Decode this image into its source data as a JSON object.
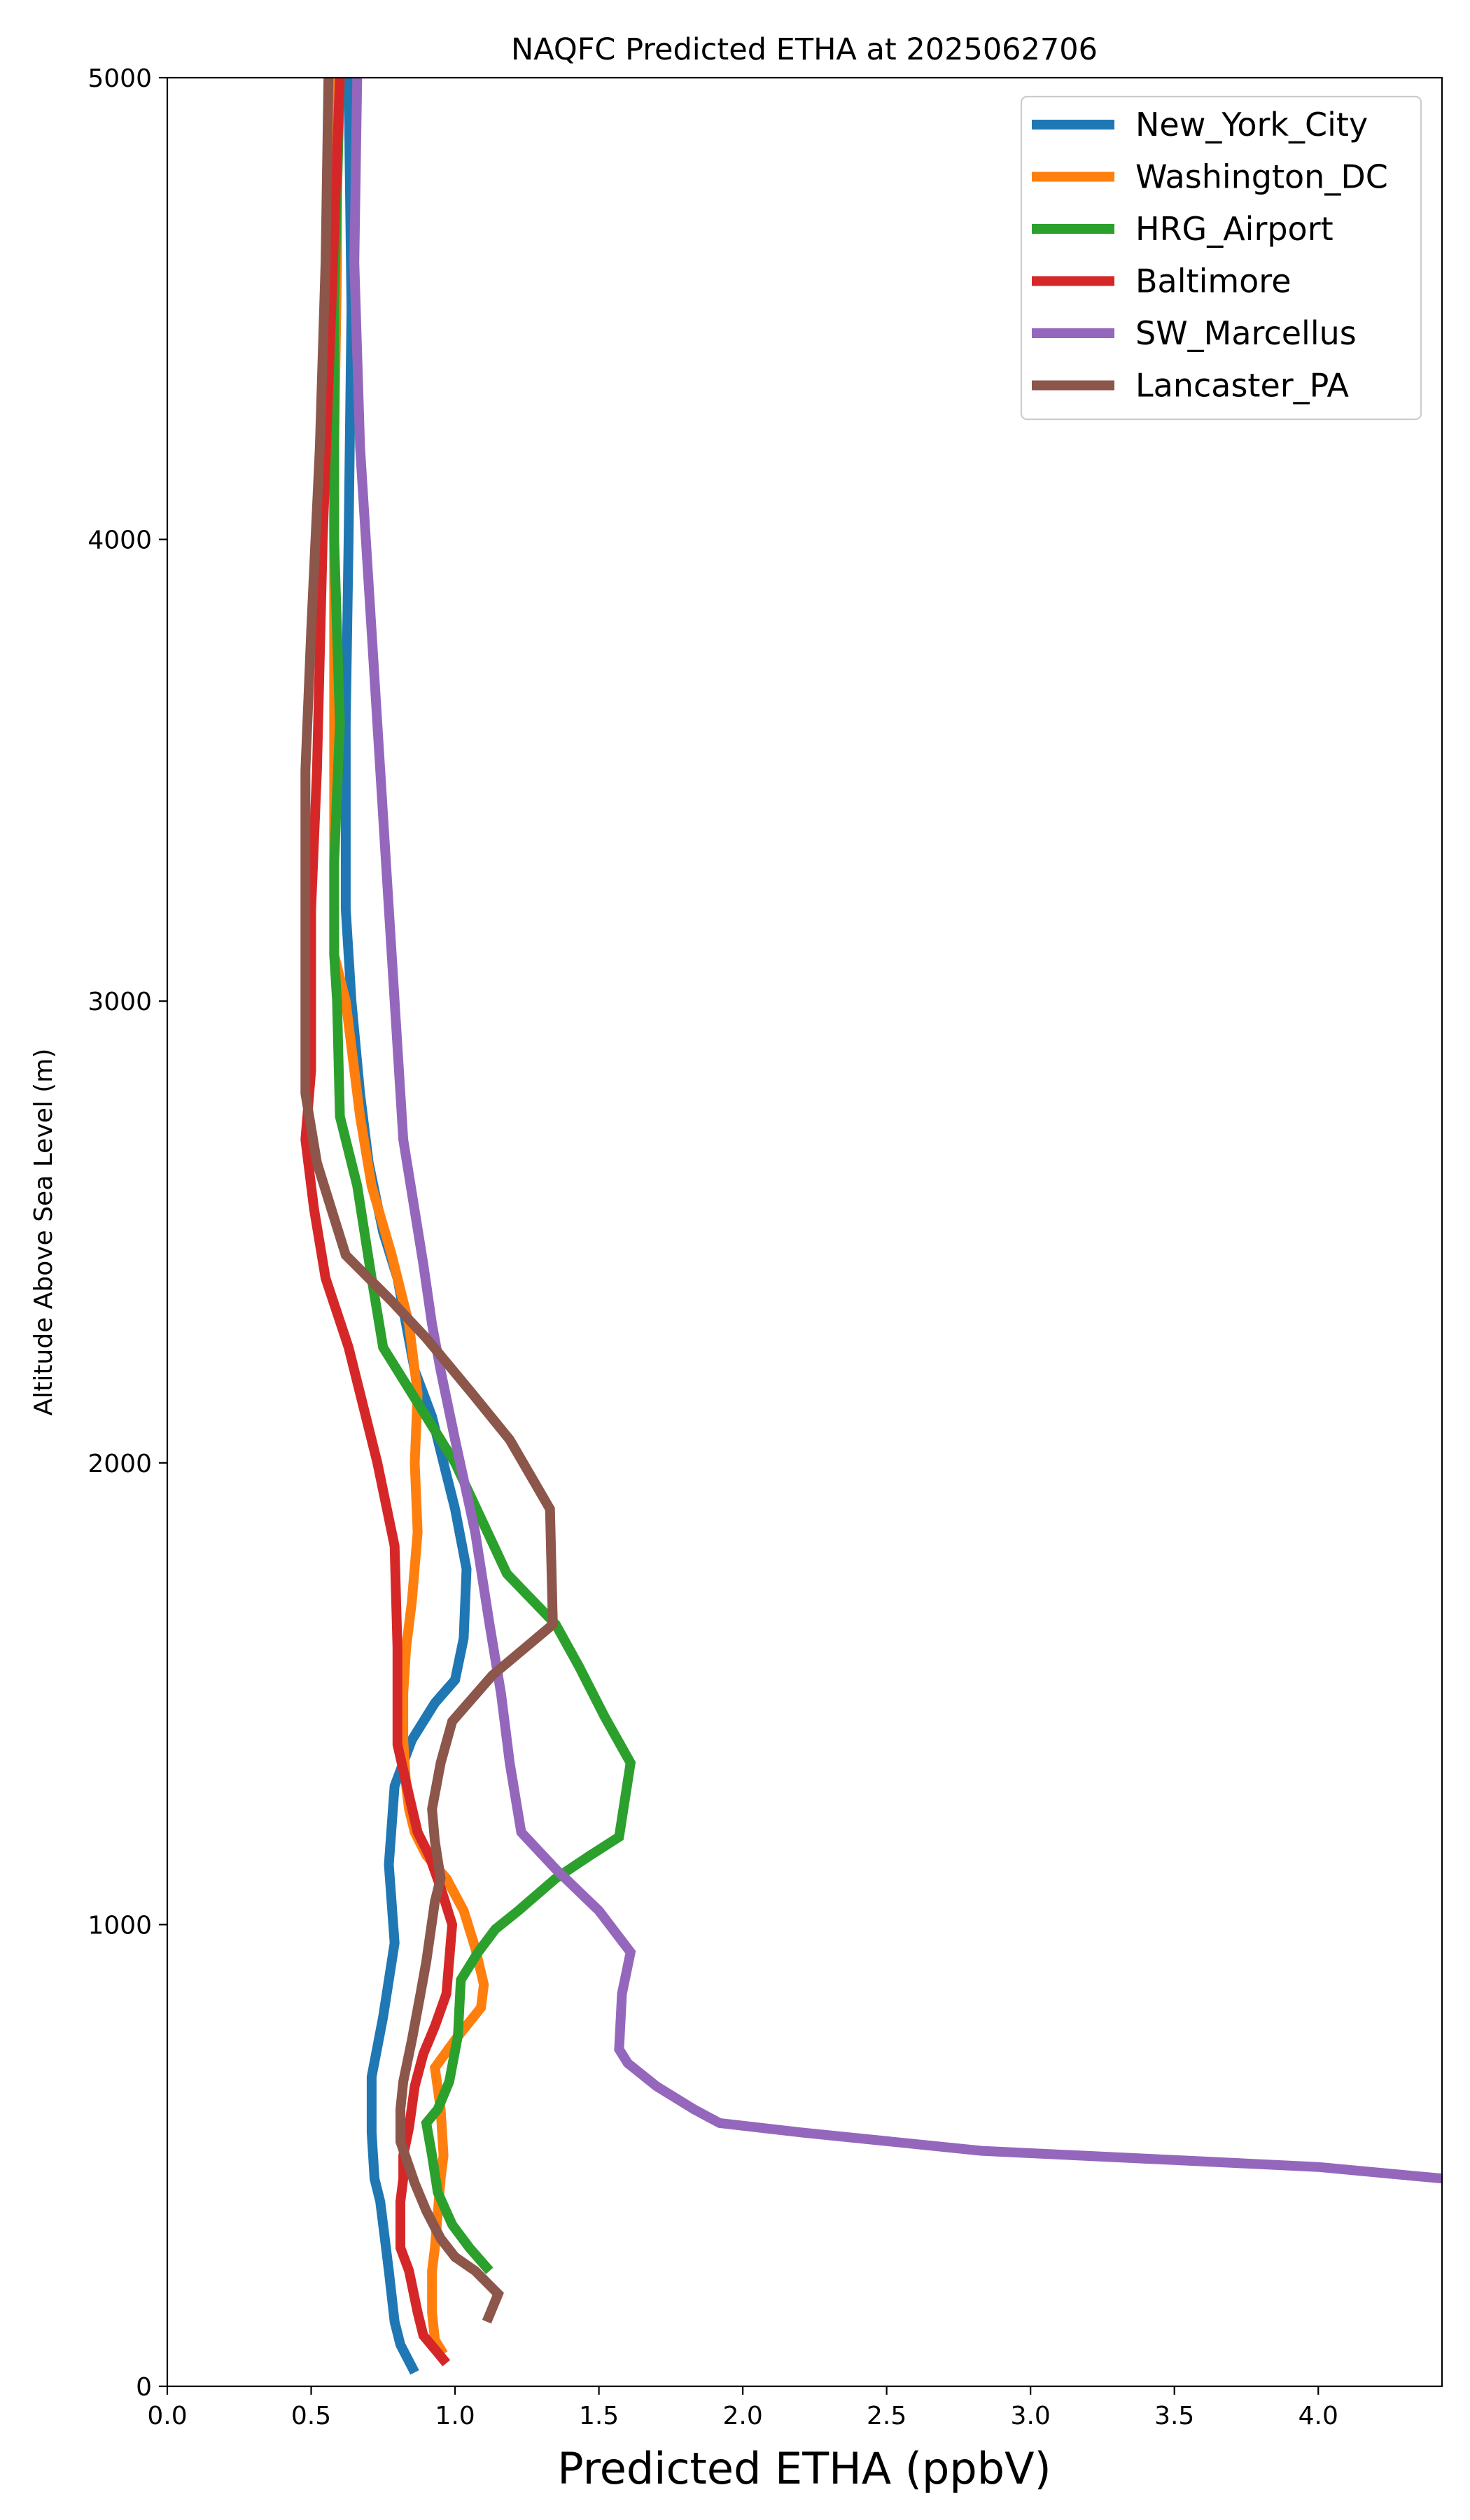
{
  "chart_data": {
    "type": "line",
    "title": "NAQFC Predicted ETHA at 2025062706",
    "xlabel": "Predicted ETHA (ppbV)",
    "ylabel": "Altitude Above Sea Level (m)",
    "xlim": [
      0,
      4.43
    ],
    "ylim": [
      0,
      5000
    ],
    "xticks": [
      "0.0",
      "0.5",
      "1.0",
      "1.5",
      "2.0",
      "2.5",
      "3.0",
      "3.5",
      "4.0"
    ],
    "xtick_values": [
      0,
      0.5,
      1.0,
      1.5,
      2.0,
      2.5,
      3.0,
      3.5,
      4.0
    ],
    "yticks": [
      "0",
      "1000",
      "2000",
      "3000",
      "4000",
      "5000"
    ],
    "ytick_values": [
      0,
      1000,
      2000,
      3000,
      4000,
      5000
    ],
    "grid": false,
    "legend_position": "top-right",
    "series": [
      {
        "name": "New_York_City",
        "color": "#1f77b4",
        "points": [
          [
            0.86,
            30
          ],
          [
            0.81,
            90
          ],
          [
            0.79,
            140
          ],
          [
            0.77,
            250
          ],
          [
            0.74,
            400
          ],
          [
            0.72,
            450
          ],
          [
            0.71,
            550
          ],
          [
            0.71,
            670
          ],
          [
            0.75,
            800
          ],
          [
            0.79,
            960
          ],
          [
            0.77,
            1130
          ],
          [
            0.79,
            1300
          ],
          [
            0.85,
            1400
          ],
          [
            0.93,
            1480
          ],
          [
            1.0,
            1530
          ],
          [
            1.03,
            1620
          ],
          [
            1.04,
            1770
          ],
          [
            1.0,
            1900
          ],
          [
            0.96,
            2000
          ],
          [
            0.92,
            2100
          ],
          [
            0.86,
            2200
          ],
          [
            0.8,
            2400
          ],
          [
            0.75,
            2500
          ],
          [
            0.7,
            2650
          ],
          [
            0.67,
            2800
          ],
          [
            0.64,
            3000
          ],
          [
            0.62,
            3200
          ],
          [
            0.62,
            3400
          ],
          [
            0.62,
            3600
          ],
          [
            0.63,
            4000
          ],
          [
            0.64,
            4500
          ],
          [
            0.63,
            5000
          ]
        ]
      },
      {
        "name": "Washington_DC",
        "color": "#ff7f0e",
        "points": [
          [
            0.96,
            70
          ],
          [
            0.93,
            100
          ],
          [
            0.92,
            160
          ],
          [
            0.92,
            250
          ],
          [
            0.93,
            300
          ],
          [
            0.95,
            450
          ],
          [
            0.96,
            500
          ],
          [
            0.95,
            600
          ],
          [
            0.93,
            690
          ],
          [
            1.0,
            750
          ],
          [
            1.09,
            820
          ],
          [
            1.1,
            870
          ],
          [
            1.07,
            950
          ],
          [
            1.03,
            1030
          ],
          [
            0.97,
            1100
          ],
          [
            0.9,
            1150
          ],
          [
            0.86,
            1200
          ],
          [
            0.84,
            1250
          ],
          [
            0.83,
            1300
          ],
          [
            0.82,
            1400
          ],
          [
            0.82,
            1500
          ],
          [
            0.83,
            1600
          ],
          [
            0.85,
            1700
          ],
          [
            0.87,
            1850
          ],
          [
            0.86,
            2000
          ],
          [
            0.87,
            2150
          ],
          [
            0.84,
            2300
          ],
          [
            0.78,
            2450
          ],
          [
            0.71,
            2600
          ],
          [
            0.67,
            2750
          ],
          [
            0.62,
            3000
          ],
          [
            0.58,
            3100
          ],
          [
            0.58,
            3300
          ],
          [
            0.58,
            3500
          ],
          [
            0.58,
            3800
          ],
          [
            0.58,
            4200
          ],
          [
            0.59,
            4600
          ],
          [
            0.59,
            5000
          ]
        ]
      },
      {
        "name": "HRG_Airport",
        "color": "#2ca02c",
        "points": [
          [
            1.12,
            250
          ],
          [
            1.05,
            300
          ],
          [
            0.99,
            350
          ],
          [
            0.94,
            420
          ],
          [
            0.92,
            500
          ],
          [
            0.9,
            570
          ],
          [
            0.94,
            600
          ],
          [
            0.98,
            660
          ],
          [
            1.01,
            760
          ],
          [
            1.02,
            880
          ],
          [
            1.08,
            940
          ],
          [
            1.14,
            990
          ],
          [
            1.22,
            1030
          ],
          [
            1.35,
            1100
          ],
          [
            1.47,
            1150
          ],
          [
            1.57,
            1190
          ],
          [
            1.61,
            1350
          ],
          [
            1.52,
            1450
          ],
          [
            1.43,
            1560
          ],
          [
            1.35,
            1650
          ],
          [
            1.18,
            1760
          ],
          [
            1.0,
            2000
          ],
          [
            0.92,
            2080
          ],
          [
            0.82,
            2180
          ],
          [
            0.75,
            2250
          ],
          [
            0.71,
            2400
          ],
          [
            0.66,
            2600
          ],
          [
            0.6,
            2750
          ],
          [
            0.59,
            3000
          ],
          [
            0.58,
            3100
          ],
          [
            0.58,
            3300
          ],
          [
            0.6,
            3600
          ],
          [
            0.58,
            4000
          ],
          [
            0.58,
            4500
          ],
          [
            0.6,
            5000
          ]
        ]
      },
      {
        "name": "Baltimore",
        "color": "#d62728",
        "points": [
          [
            0.97,
            50
          ],
          [
            0.93,
            80
          ],
          [
            0.89,
            110
          ],
          [
            0.87,
            160
          ],
          [
            0.84,
            250
          ],
          [
            0.81,
            300
          ],
          [
            0.81,
            350
          ],
          [
            0.81,
            400
          ],
          [
            0.82,
            450
          ],
          [
            0.82,
            500
          ],
          [
            0.84,
            560
          ],
          [
            0.86,
            650
          ],
          [
            0.89,
            720
          ],
          [
            0.93,
            780
          ],
          [
            0.97,
            850
          ],
          [
            0.99,
            1000
          ],
          [
            0.95,
            1080
          ],
          [
            0.91,
            1150
          ],
          [
            0.87,
            1200
          ],
          [
            0.84,
            1280
          ],
          [
            0.8,
            1390
          ],
          [
            0.8,
            1450
          ],
          [
            0.8,
            1600
          ],
          [
            0.79,
            1820
          ],
          [
            0.73,
            2000
          ],
          [
            0.63,
            2250
          ],
          [
            0.55,
            2400
          ],
          [
            0.51,
            2550
          ],
          [
            0.48,
            2700
          ],
          [
            0.5,
            2850
          ],
          [
            0.5,
            3000
          ],
          [
            0.5,
            3200
          ],
          [
            0.52,
            3500
          ],
          [
            0.54,
            4000
          ],
          [
            0.57,
            4500
          ],
          [
            0.6,
            5000
          ]
        ]
      },
      {
        "name": "SW_Marcellus",
        "color": "#9467bd",
        "points": [
          [
            4.43,
            450
          ],
          [
            4.0,
            475
          ],
          [
            3.5,
            490
          ],
          [
            2.83,
            510
          ],
          [
            2.2,
            550
          ],
          [
            1.92,
            570
          ],
          [
            1.83,
            600
          ],
          [
            1.7,
            650
          ],
          [
            1.6,
            700
          ],
          [
            1.57,
            730
          ],
          [
            1.58,
            850
          ],
          [
            1.61,
            940
          ],
          [
            1.5,
            1030
          ],
          [
            1.35,
            1120
          ],
          [
            1.23,
            1200
          ],
          [
            1.19,
            1350
          ],
          [
            1.16,
            1500
          ],
          [
            1.12,
            1650
          ],
          [
            1.07,
            1850
          ],
          [
            1.0,
            2050
          ],
          [
            0.95,
            2200
          ],
          [
            0.92,
            2300
          ],
          [
            0.89,
            2430
          ],
          [
            0.82,
            2700
          ],
          [
            0.77,
            3200
          ],
          [
            0.71,
            3800
          ],
          [
            0.67,
            4200
          ],
          [
            0.65,
            4600
          ],
          [
            0.66,
            5000
          ]
        ]
      },
      {
        "name": "Lancaster_PA",
        "color": "#8c564b",
        "points": [
          [
            1.11,
            140
          ],
          [
            1.15,
            200
          ],
          [
            1.07,
            250
          ],
          [
            1.0,
            280
          ],
          [
            0.95,
            320
          ],
          [
            0.9,
            380
          ],
          [
            0.86,
            440
          ],
          [
            0.81,
            530
          ],
          [
            0.81,
            600
          ],
          [
            0.82,
            660
          ],
          [
            0.85,
            750
          ],
          [
            0.88,
            850
          ],
          [
            0.9,
            920
          ],
          [
            0.93,
            1050
          ],
          [
            0.95,
            1100
          ],
          [
            0.93,
            1180
          ],
          [
            0.92,
            1250
          ],
          [
            0.95,
            1350
          ],
          [
            0.99,
            1440
          ],
          [
            1.13,
            1540
          ],
          [
            1.34,
            1650
          ],
          [
            1.33,
            1900
          ],
          [
            1.19,
            2050
          ],
          [
            1.06,
            2150
          ],
          [
            0.9,
            2270
          ],
          [
            0.78,
            2350
          ],
          [
            0.62,
            2450
          ],
          [
            0.57,
            2550
          ],
          [
            0.52,
            2650
          ],
          [
            0.48,
            2800
          ],
          [
            0.48,
            3000
          ],
          [
            0.48,
            3200
          ],
          [
            0.48,
            3500
          ],
          [
            0.5,
            3800
          ],
          [
            0.53,
            4200
          ],
          [
            0.55,
            4600
          ],
          [
            0.56,
            5000
          ]
        ]
      }
    ]
  }
}
